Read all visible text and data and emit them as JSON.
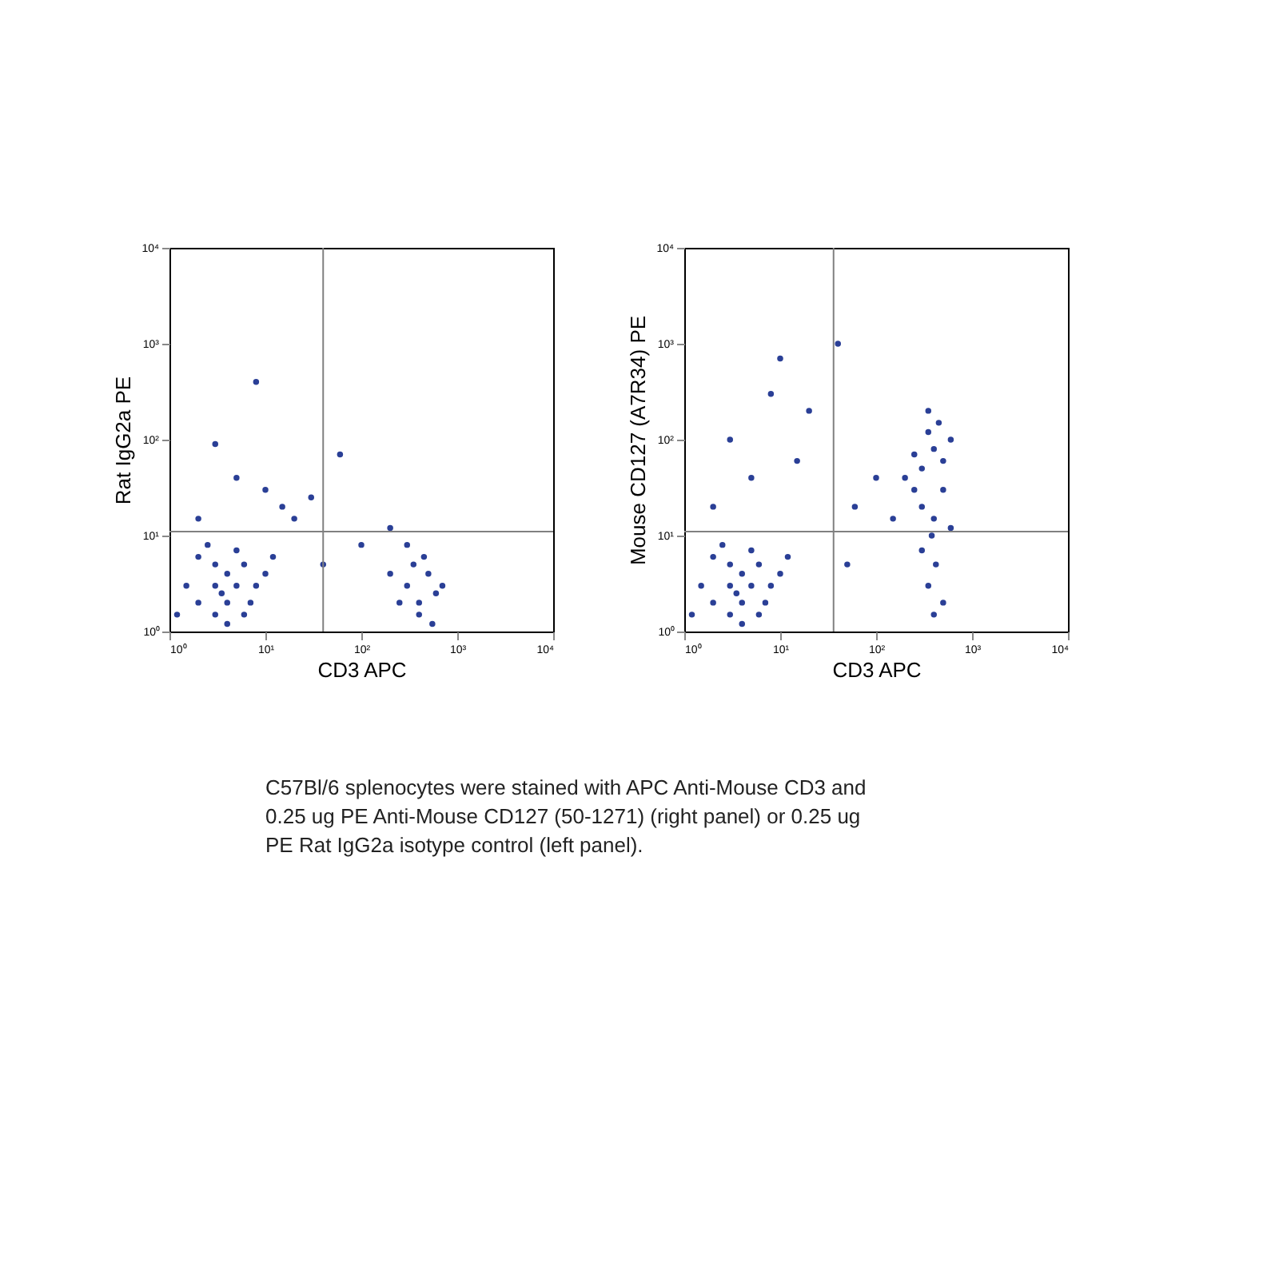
{
  "chart_data": [
    {
      "type": "scatter",
      "xlabel": "CD3 APC",
      "ylabel": "Rat IgG2a PE",
      "log": "xy",
      "grid": false,
      "marker": "circle",
      "xlim": [
        1,
        10000
      ],
      "ylim": [
        1,
        10000
      ],
      "xticks": [
        {
          "value": 1,
          "label": "10⁰"
        },
        {
          "value": 10,
          "label": "10¹"
        },
        {
          "value": 100,
          "label": "10²"
        },
        {
          "value": 1000,
          "label": "10³"
        },
        {
          "value": 10000,
          "label": "10⁴"
        }
      ],
      "yticks": [
        {
          "value": 1,
          "label": "10⁰"
        },
        {
          "value": 10,
          "label": "10¹"
        },
        {
          "value": 100,
          "label": "10²"
        },
        {
          "value": 1000,
          "label": "10³"
        },
        {
          "value": 10000,
          "label": "10⁴"
        }
      ],
      "ref_lines": [
        {
          "axis": "x",
          "value": 40,
          "color": "#808080"
        },
        {
          "axis": "y",
          "value": 11,
          "color": "#808080"
        }
      ],
      "series": [
        {
          "color": "#2a3f96",
          "x": [
            2,
            3,
            4,
            5,
            3,
            2,
            4,
            6,
            8,
            1.5,
            3,
            5,
            7,
            10,
            2.5,
            4,
            1.2,
            12,
            6,
            3.5,
            300,
            400,
            500,
            350,
            600,
            250,
            450,
            700,
            400,
            300,
            550,
            200,
            5,
            20,
            30,
            3,
            10,
            60,
            200,
            8,
            15,
            2,
            100,
            40
          ],
          "values": [
            2,
            3,
            4,
            3,
            5,
            6,
            2,
            5,
            3,
            3,
            1.5,
            7,
            2,
            4,
            8,
            1.2,
            1.5,
            6,
            1.5,
            2.5,
            3,
            2,
            4,
            5,
            2.5,
            2,
            6,
            3,
            1.5,
            8,
            1.2,
            4,
            40,
            15,
            25,
            90,
            30,
            70,
            12,
            400,
            20,
            15,
            8,
            5
          ]
        }
      ],
      "annotations": [
        "C57Bl/6 splenocytes were stained with APC Anti-Mouse CD3 and 0.25 ug PE Anti-Mouse CD127 (50-1271) (right panel) or 0.25 ug PE Rat IgG2a isotype control (left panel)."
      ]
    },
    {
      "type": "scatter",
      "xlabel": "CD3 APC",
      "ylabel": "Mouse CD127 (A7R34) PE",
      "log": "xy",
      "grid": false,
      "marker": "circle",
      "xlim": [
        1,
        10000
      ],
      "ylim": [
        1,
        10000
      ],
      "xticks": [
        {
          "value": 1,
          "label": "10⁰"
        },
        {
          "value": 10,
          "label": "10¹"
        },
        {
          "value": 100,
          "label": "10²"
        },
        {
          "value": 1000,
          "label": "10³"
        },
        {
          "value": 10000,
          "label": "10⁴"
        }
      ],
      "yticks": [
        {
          "value": 1,
          "label": "10⁰"
        },
        {
          "value": 10,
          "label": "10¹"
        },
        {
          "value": 100,
          "label": "10²"
        },
        {
          "value": 1000,
          "label": "10³"
        },
        {
          "value": 10000,
          "label": "10⁴"
        }
      ],
      "ref_lines": [
        {
          "axis": "x",
          "value": 36,
          "color": "#808080"
        },
        {
          "axis": "y",
          "value": 11,
          "color": "#808080"
        }
      ],
      "series": [
        {
          "color": "#2a3f96",
          "x": [
            2,
            3,
            4,
            5,
            3,
            2,
            4,
            6,
            8,
            1.5,
            3,
            5,
            7,
            10,
            2.5,
            4,
            1.2,
            12,
            6,
            3.5,
            300,
            400,
            250,
            350,
            500,
            200,
            450,
            300,
            600,
            400,
            350,
            250,
            500,
            380,
            420,
            350,
            500,
            300,
            600,
            400,
            5,
            3,
            8,
            10,
            15,
            40,
            20,
            60,
            100,
            150,
            50,
            2
          ],
          "values": [
            2,
            3,
            4,
            3,
            5,
            6,
            2,
            5,
            3,
            3,
            1.5,
            7,
            2,
            4,
            8,
            1.2,
            1.5,
            6,
            1.5,
            2.5,
            50,
            80,
            30,
            120,
            60,
            40,
            150,
            20,
            100,
            15,
            200,
            70,
            30,
            10,
            5,
            3,
            2,
            7,
            12,
            1.5,
            40,
            100,
            300,
            700,
            60,
            1000,
            200,
            20,
            40,
            15,
            5,
            20
          ]
        }
      ]
    }
  ]
}
